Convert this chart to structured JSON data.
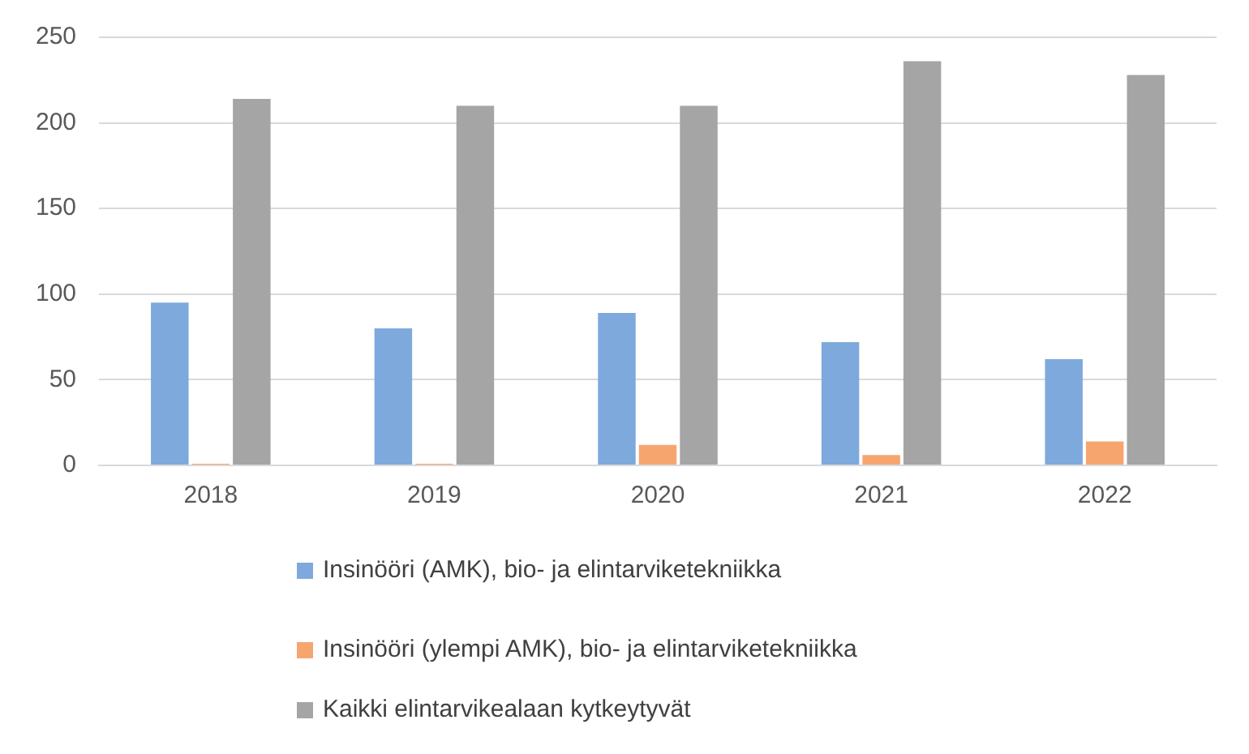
{
  "chart_data": {
    "type": "bar",
    "categories": [
      "2018",
      "2019",
      "2020",
      "2021",
      "2022"
    ],
    "series": [
      {
        "name": "Insinööri (AMK), bio- ja elintarviketekniikka",
        "color": "#7ea9dd",
        "values": [
          95,
          80,
          89,
          72,
          62
        ]
      },
      {
        "name": "Insinööri (ylempi AMK), bio- ja elintarviketekniikka",
        "color": "#f7a56f",
        "values": [
          1,
          1,
          12,
          6,
          14
        ]
      },
      {
        "name": "Kaikki elintarvikealaan kytkeytyvät",
        "color": "#a5a5a5",
        "values": [
          214,
          210,
          210,
          236,
          228
        ]
      }
    ],
    "ylim": [
      0,
      250
    ],
    "yticks": [
      0,
      50,
      100,
      150,
      200,
      250
    ],
    "grid": "y",
    "legend": "bottom"
  }
}
